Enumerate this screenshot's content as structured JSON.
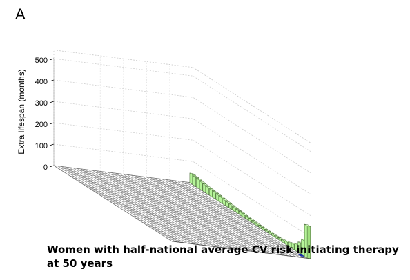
{
  "panel_label": "A",
  "caption": "Women with half-national average CV risk initiating therapy at 50 years",
  "colors": {
    "bar_fill": "#b6f59a",
    "bar_edge": "#4a6a3a",
    "floor_fill": "#ffffff",
    "floor_edge": "#777777",
    "marker": "#1a2fa8"
  },
  "chart_data": {
    "type": "bar3d",
    "title": "",
    "zlabel": "Extra lifespan (months)",
    "zlim": [
      0,
      500
    ],
    "z_ticks": [
      0,
      100,
      200,
      300,
      400,
      500
    ],
    "grid": true,
    "series": [
      {
        "values": [
          45,
          42,
          40,
          37,
          35,
          33,
          31,
          29,
          27,
          25,
          23,
          21,
          19,
          17,
          15,
          14,
          12,
          11,
          10,
          9,
          8,
          8,
          7,
          7,
          7,
          7,
          8,
          9,
          11,
          14,
          18,
          24,
          33,
          48,
          72,
          150
        ]
      }
    ]
  }
}
